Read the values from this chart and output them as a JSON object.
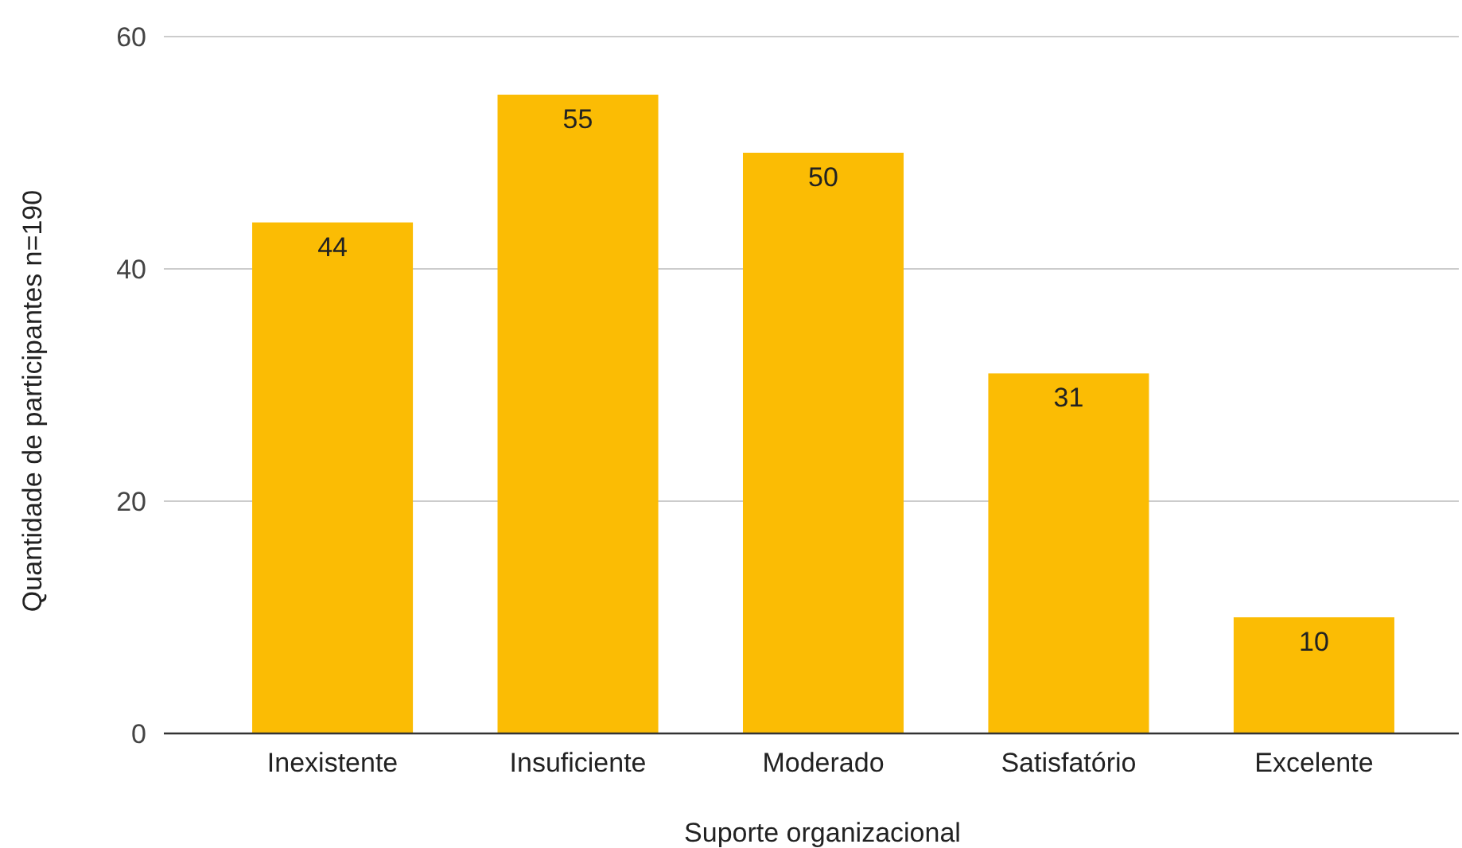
{
  "chart_data": {
    "type": "bar",
    "xlabel": "Suporte organizacional",
    "ylabel": "Quantidade de participantes n=190",
    "categories": [
      "Inexistente",
      "Insuficiente",
      "Moderado",
      "Satisfatório",
      "Excelente"
    ],
    "values": [
      44,
      55,
      50,
      31,
      10
    ],
    "color": "#fbbc04",
    "ylim": [
      0,
      60
    ],
    "yticks": [
      0,
      20,
      40,
      60
    ],
    "grid": "y",
    "data_labels": true
  }
}
